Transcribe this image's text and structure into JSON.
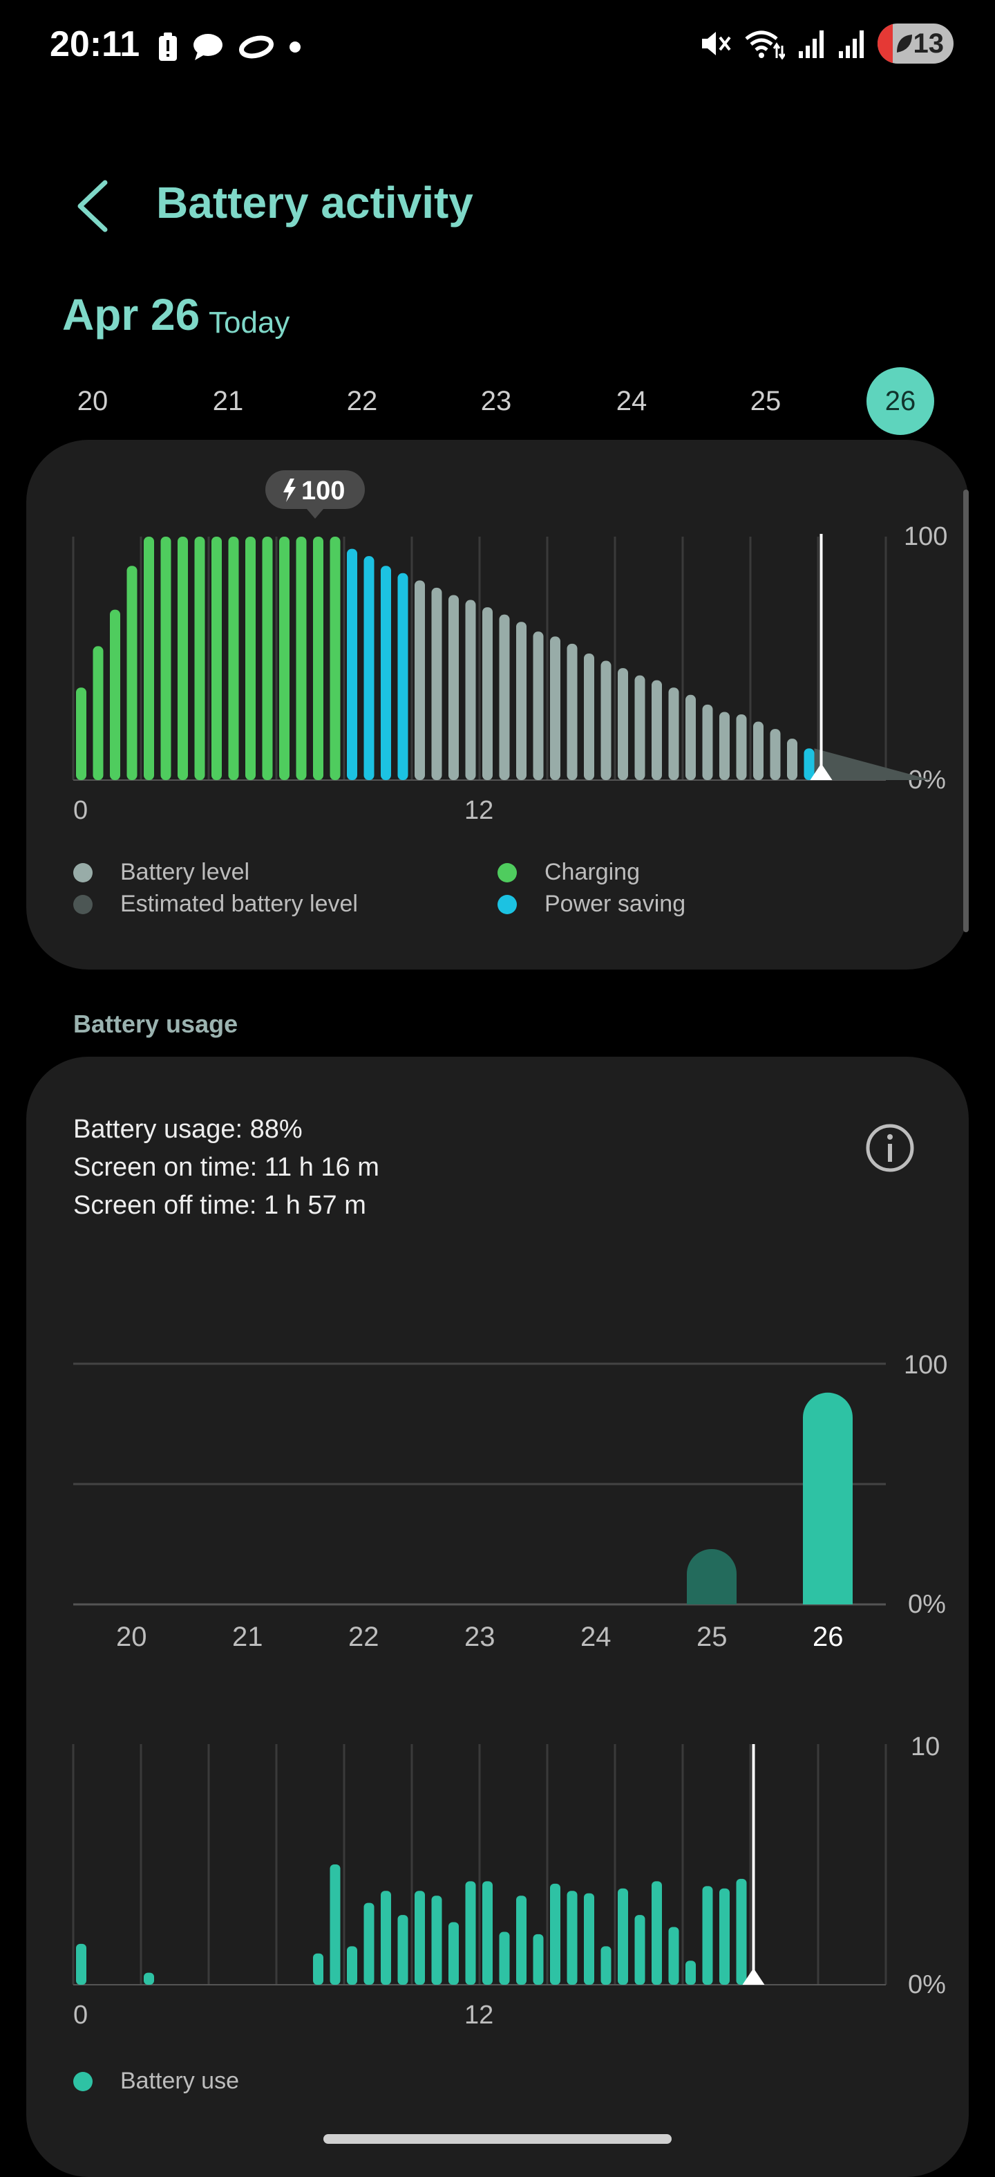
{
  "status_bar": {
    "time": "20:11",
    "battery": "13"
  },
  "header": {
    "title": "Battery activity"
  },
  "date_header": {
    "date": "Apr 26",
    "today": "Today"
  },
  "day_selector": {
    "days": [
      "20",
      "21",
      "22",
      "23",
      "24",
      "25",
      "26"
    ],
    "selected": "26"
  },
  "battery_chart": {
    "tooltip": "100",
    "legend": {
      "battery_level": "Battery level",
      "estimated": "Estimated battery level",
      "charging": "Charging",
      "power_saving": "Power saving"
    },
    "colors": {
      "battery_level": "#98aca8",
      "estimated": "#4c5654",
      "charging": "#4fcc5e",
      "power_saving": "#1cc2e2"
    }
  },
  "chart_data": [
    {
      "type": "bar",
      "x_ticks": [
        "0",
        "12"
      ],
      "y_ticks": [
        "100",
        "0%"
      ],
      "ylim": [
        0,
        100
      ],
      "x_range_hours": [
        0,
        24
      ],
      "series": [
        {
          "name": "Charging",
          "values": [
            38,
            55,
            70,
            88,
            100,
            100,
            100,
            100,
            100,
            100,
            100,
            100,
            100,
            100,
            100,
            100
          ]
        },
        {
          "name": "Power saving",
          "values": [
            95,
            92,
            88,
            85
          ]
        },
        {
          "name": "Battery level",
          "values": [
            82,
            79,
            76,
            74,
            71,
            68,
            65,
            61,
            59,
            56,
            52,
            49,
            46,
            43,
            41,
            38,
            35,
            31,
            28,
            27,
            24,
            21,
            17
          ]
        },
        {
          "name": "Power saving",
          "values": [
            13
          ]
        },
        {
          "name": "Estimated battery level",
          "values": [
            13,
            0
          ]
        }
      ]
    },
    {
      "type": "bar",
      "categories": [
        "20",
        "21",
        "22",
        "23",
        "24",
        "25",
        "26"
      ],
      "values": [
        0,
        0,
        0,
        0,
        0,
        23,
        88
      ],
      "y_ticks": [
        "100",
        "0%"
      ],
      "ylim": [
        0,
        100
      ]
    },
    {
      "type": "bar",
      "x_ticks": [
        "0",
        "12"
      ],
      "y_ticks": [
        "10",
        "0%"
      ],
      "ylim": [
        0,
        10
      ],
      "series": [
        {
          "name": "Battery use",
          "values": [
            1.7,
            0,
            0,
            0,
            0.5,
            0,
            0,
            0,
            0,
            0,
            0,
            0,
            0,
            0,
            1.3,
            5.0,
            1.6,
            3.4,
            3.9,
            2.9,
            3.9,
            3.7,
            2.6,
            4.3,
            4.3,
            2.2,
            3.7,
            2.1,
            4.2,
            3.9,
            3.8,
            1.6,
            4.0,
            2.9,
            4.3,
            2.4,
            1.0,
            4.1,
            4.0,
            4.4
          ]
        }
      ]
    }
  ],
  "battery_usage": {
    "section_label": "Battery usage",
    "usage": "Battery usage: 88%",
    "screen_on": "Screen on time: 11 h 16 m",
    "screen_off": "Screen off time: 1 h 57 m",
    "legend": "Battery use",
    "colors": {
      "bar": "#2ec2a4",
      "bar_dim": "#236b5c"
    }
  }
}
